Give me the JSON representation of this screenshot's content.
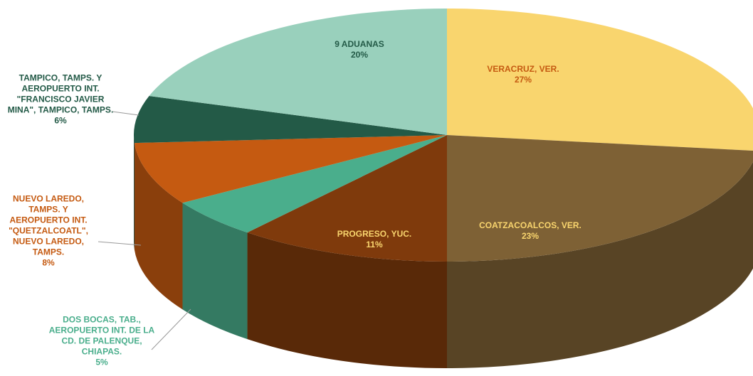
{
  "chart_data": {
    "type": "pie3d",
    "categories": [
      "VERACRUZ, VER.",
      "COATZACOALCOS, VER.",
      "PROGRESO, YUC.",
      "DOS BOCAS, TAB., AEROPUERTO INT. DE LA CD. DE PALENQUE, CHIAPAS.",
      "NUEVO LAREDO, TAMPS. Y AEROPUERTO INT. \"QUETZALCOATL\", NUEVO LAREDO, TAMPS.",
      "TAMPICO, TAMPS. Y AEROPUERTO INT. \"FRANCISCO JAVIER MINA\", TAMPICO, TAMPS.",
      "9 ADUANAS"
    ],
    "values": [
      27,
      23,
      11,
      5,
      8,
      6,
      20
    ],
    "value_labels": [
      "27%",
      "23%",
      "11%",
      "5%",
      "8%",
      "6%",
      "20%"
    ],
    "colors": [
      "#f9d56e",
      "#7e6135",
      "#7f3a0c",
      "#4aae8c",
      "#c55a11",
      "#235a47",
      "#99d0bc"
    ]
  }
}
